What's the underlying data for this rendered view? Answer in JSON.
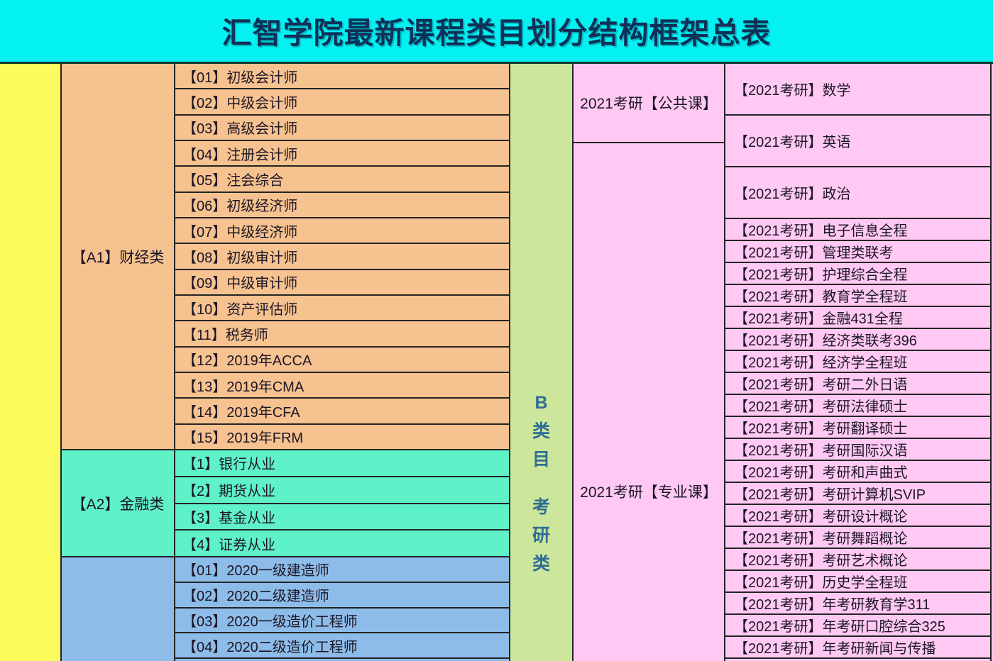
{
  "title": "汇智学院最新课程类目划分结构框架总表",
  "colors": {
    "header_bg": "#03F1F1",
    "title_text": "#0D3158",
    "yellow": "#FBFB5D",
    "orange": "#F6C28F",
    "teal": "#5FF2C9",
    "blue": "#8DBCE9",
    "green": "#CCE79B",
    "green_text": "#2F6D94",
    "pink": "#FFC9F3",
    "border": "#242424",
    "cell_text": "#1D1626"
  },
  "left": {
    "sections": [
      {
        "label": "【A1】财经类",
        "items": [
          "【01】初级会计师",
          "【02】中级会计师",
          "【03】高级会计师",
          "【04】注册会计师",
          "【05】注会综合",
          "【06】初级经济师",
          "【07】中级经济师",
          "【08】初级审计师",
          "【09】中级审计师",
          "【10】资产评估师",
          "【11】税务师",
          "【12】2019年ACCA",
          "【13】2019年CMA",
          "【14】2019年CFA",
          "【15】2019年FRM"
        ]
      },
      {
        "label": "【A2】金融类",
        "items": [
          "【1】银行从业",
          "【2】期货从业",
          "【3】基金从业",
          "【4】证券从业"
        ]
      },
      {
        "label": "",
        "items": [
          "【01】2020一级建造师",
          "【02】2020二级建造师",
          "【03】2020一级造价工程师",
          "【04】2020二级造价工程师"
        ]
      }
    ]
  },
  "middle": {
    "vertical_label": "B类目 考研类",
    "chars": [
      "B",
      "类",
      "目",
      "考",
      "研",
      "类"
    ]
  },
  "right": {
    "sections": [
      {
        "label": "2021考研【公共课】",
        "items": [
          "【2021考研】数学",
          "【2021考研】英语",
          "【2021考研】政治"
        ]
      },
      {
        "label": "2021考研【专业课】",
        "items": [
          "【2021考研】电子信息全程",
          "【2021考研】管理类联考",
          "【2021考研】护理综合全程",
          "【2021考研】教育学全程班",
          "【2021考研】金融431全程",
          "【2021考研】经济类联考396",
          "【2021考研】经济学全程班",
          "【2021考研】考研二外日语",
          "【2021考研】考研法律硕士",
          "【2021考研】考研翻译硕士",
          "【2021考研】考研国际汉语",
          "【2021考研】考研和声曲式",
          "【2021考研】考研计算机SVIP",
          "【2021考研】考研设计概论",
          "【2021考研】考研舞蹈概论",
          "【2021考研】考研艺术概论",
          "【2021考研】历史学全程班",
          "【2021考研】年考研教育学311",
          "【2021考研】年考研口腔综合325",
          "【2021考研】年考研新闻与传播"
        ]
      }
    ]
  }
}
